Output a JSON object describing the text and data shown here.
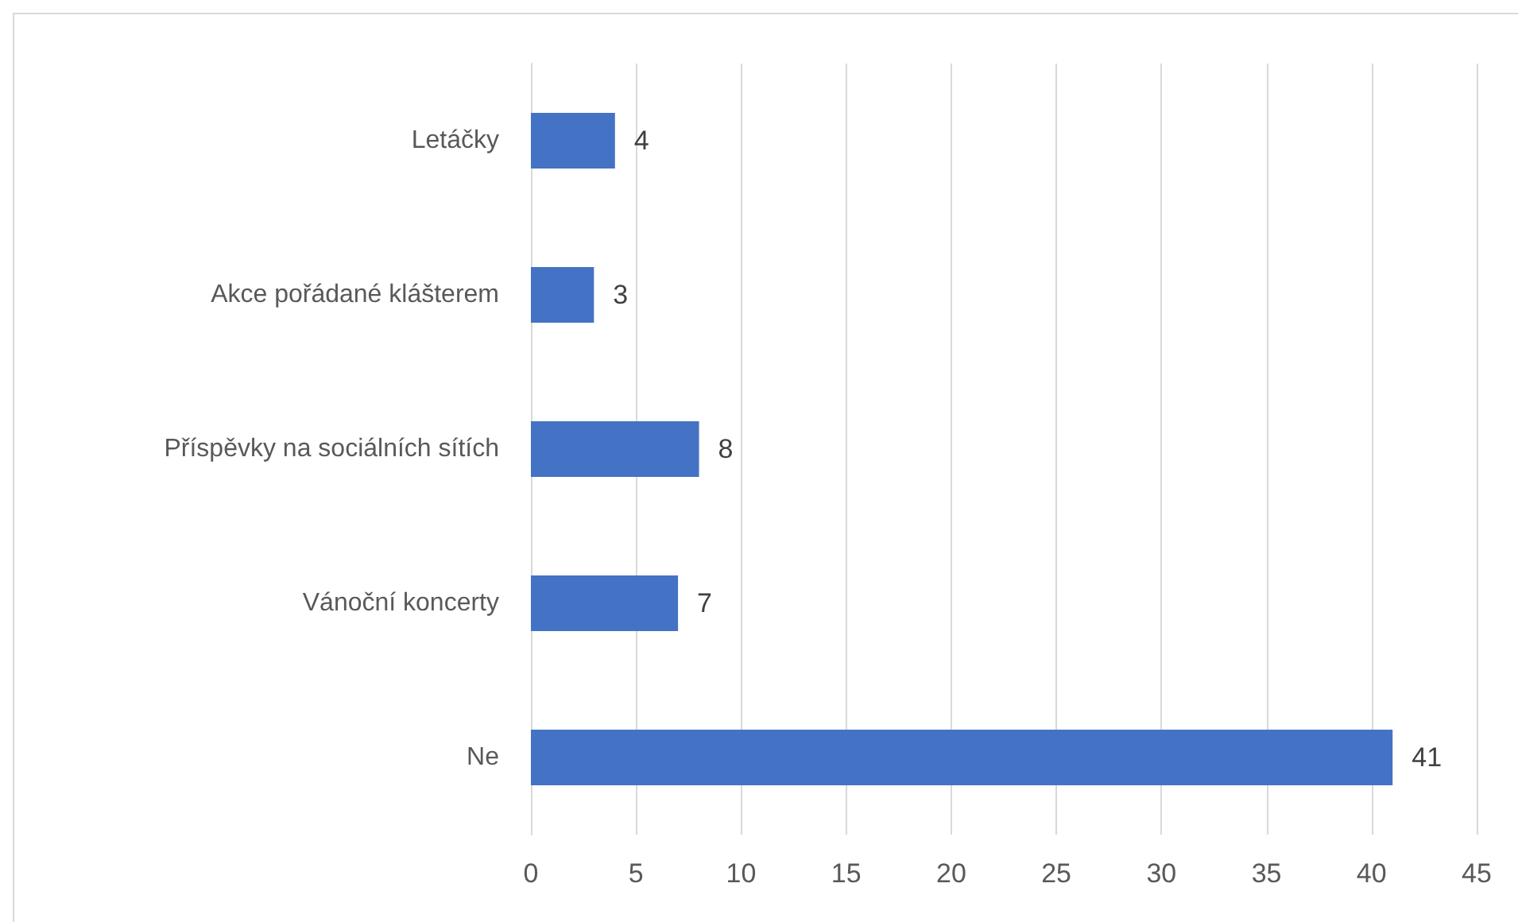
{
  "chart_data": {
    "type": "bar",
    "orientation": "horizontal",
    "categories": [
      "Letáčky",
      "Akce pořádané klášterem",
      "Příspěvky na sociálních sítích",
      "Vánoční koncerty",
      "Ne"
    ],
    "values": [
      4,
      3,
      8,
      7,
      41
    ],
    "color": "#4472c4",
    "xlim": [
      0,
      45
    ],
    "xticks": [
      0,
      5,
      10,
      15,
      20,
      25,
      30,
      35,
      40,
      45
    ],
    "grid": "x",
    "data_labels": true
  }
}
